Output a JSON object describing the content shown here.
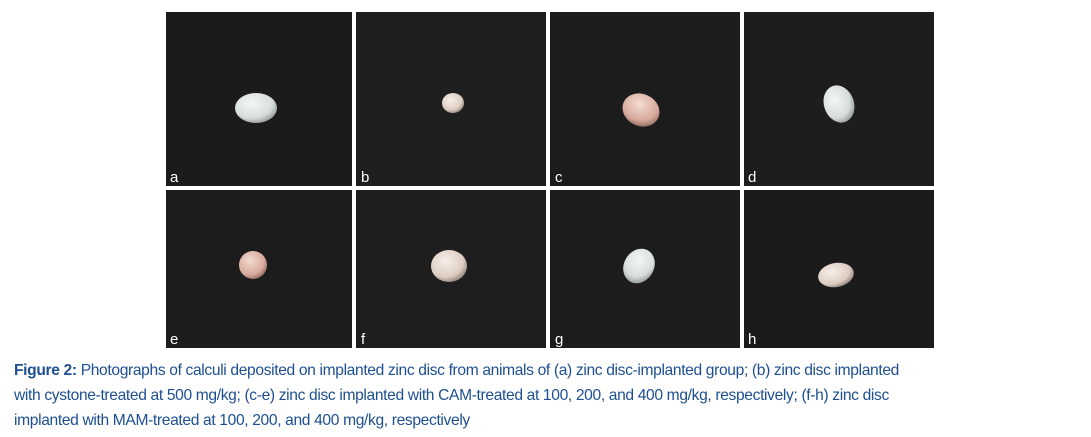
{
  "figure": {
    "panels": [
      {
        "label": "a"
      },
      {
        "label": "b"
      },
      {
        "label": "c"
      },
      {
        "label": "d"
      },
      {
        "label": "e"
      },
      {
        "label": "f"
      },
      {
        "label": "g"
      },
      {
        "label": "h"
      }
    ],
    "caption": {
      "label": "Figure 2:",
      "lines": [
        "Photographs of calculi deposited on implanted zinc disc from animals of (a) zinc disc-implanted group; (b) zinc disc implanted",
        "with cystone-treated at 500 mg/kg; (c-e) zinc disc implanted with CAM-treated at 100, 200, and 400 mg/kg, respectively; (f-h) zinc disc",
        "implanted with MAM-treated at 100, 200, and 400 mg/kg, respectively"
      ]
    }
  }
}
